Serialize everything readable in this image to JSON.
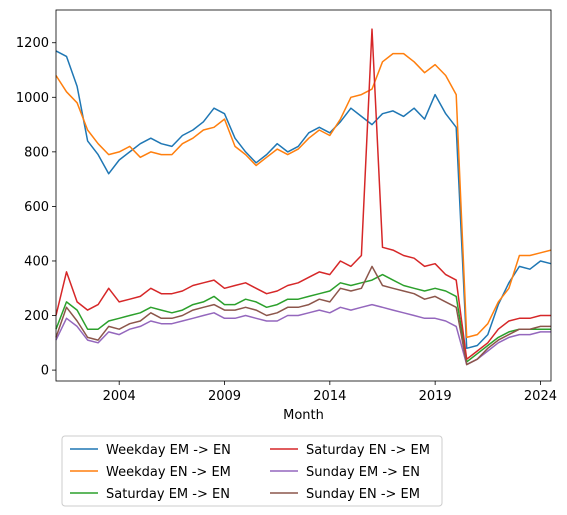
{
  "chart_data": {
    "type": "line",
    "title": "",
    "xlabel": "Month",
    "ylabel": "",
    "xlim": [
      2001.0,
      2024.5
    ],
    "ylim": [
      -40,
      1320
    ],
    "x_ticks": [
      2004,
      2009,
      2014,
      2019,
      2024
    ],
    "y_ticks": [
      0,
      200,
      400,
      600,
      800,
      1000,
      1200
    ],
    "grid": false,
    "legend_position": "below",
    "x": [
      2001.0,
      2001.5,
      2002.0,
      2002.5,
      2003.0,
      2003.5,
      2004.0,
      2004.5,
      2005.0,
      2005.5,
      2006.0,
      2006.5,
      2007.0,
      2007.5,
      2008.0,
      2008.5,
      2009.0,
      2009.5,
      2010.0,
      2010.5,
      2011.0,
      2011.5,
      2012.0,
      2012.5,
      2013.0,
      2013.5,
      2014.0,
      2014.5,
      2015.0,
      2015.5,
      2016.0,
      2016.5,
      2017.0,
      2017.5,
      2018.0,
      2018.5,
      2019.0,
      2019.5,
      2020.0,
      2020.5,
      2021.0,
      2021.5,
      2022.0,
      2022.5,
      2023.0,
      2023.5,
      2024.0,
      2024.5
    ],
    "series": [
      {
        "name": "Weekday EM -> EN",
        "color": "#1f77b4",
        "values": [
          1170,
          1150,
          1040,
          840,
          790,
          720,
          770,
          800,
          830,
          850,
          830,
          820,
          860,
          880,
          910,
          960,
          940,
          850,
          800,
          760,
          790,
          830,
          800,
          820,
          870,
          890,
          870,
          910,
          960,
          930,
          900,
          940,
          950,
          930,
          960,
          920,
          1010,
          940,
          890,
          80,
          90,
          130,
          240,
          320,
          380,
          370,
          400,
          390
        ]
      },
      {
        "name": "Weekday EN -> EM",
        "color": "#ff7f0e",
        "values": [
          1080,
          1020,
          980,
          880,
          830,
          790,
          800,
          820,
          780,
          800,
          790,
          790,
          830,
          850,
          880,
          890,
          920,
          820,
          790,
          750,
          780,
          810,
          790,
          810,
          850,
          880,
          860,
          920,
          1000,
          1010,
          1030,
          1130,
          1160,
          1160,
          1130,
          1090,
          1120,
          1080,
          1010,
          120,
          130,
          170,
          250,
          300,
          420,
          420,
          430,
          440
        ]
      },
      {
        "name": "Saturday EM -> EN",
        "color": "#2ca02c",
        "values": [
          150,
          250,
          220,
          150,
          150,
          180,
          190,
          200,
          210,
          230,
          220,
          210,
          220,
          240,
          250,
          270,
          240,
          240,
          260,
          250,
          230,
          240,
          260,
          260,
          270,
          280,
          290,
          320,
          310,
          320,
          330,
          350,
          330,
          310,
          300,
          290,
          300,
          290,
          270,
          30,
          60,
          90,
          120,
          140,
          150,
          150,
          150,
          150
        ]
      },
      {
        "name": "Saturday EN -> EM",
        "color": "#d62728",
        "values": [
          200,
          360,
          250,
          220,
          240,
          300,
          250,
          260,
          270,
          300,
          280,
          280,
          290,
          310,
          320,
          330,
          300,
          310,
          320,
          300,
          280,
          290,
          310,
          320,
          340,
          360,
          350,
          400,
          380,
          420,
          1250,
          450,
          440,
          420,
          410,
          380,
          390,
          350,
          330,
          40,
          70,
          100,
          150,
          180,
          190,
          190,
          200,
          200
        ]
      },
      {
        "name": "Sunday EM -> EN",
        "color": "#9467bd",
        "values": [
          110,
          190,
          160,
          110,
          100,
          140,
          130,
          150,
          160,
          180,
          170,
          170,
          180,
          190,
          200,
          210,
          190,
          190,
          200,
          190,
          180,
          180,
          200,
          200,
          210,
          220,
          210,
          230,
          220,
          230,
          240,
          230,
          220,
          210,
          200,
          190,
          190,
          180,
          160,
          20,
          40,
          70,
          100,
          120,
          130,
          130,
          140,
          140
        ]
      },
      {
        "name": "Sunday EN -> EM",
        "color": "#8c564b",
        "values": [
          120,
          230,
          180,
          120,
          110,
          160,
          150,
          170,
          180,
          210,
          190,
          190,
          200,
          220,
          230,
          240,
          220,
          220,
          230,
          220,
          200,
          210,
          230,
          230,
          240,
          260,
          250,
          300,
          290,
          300,
          380,
          310,
          300,
          290,
          280,
          260,
          270,
          250,
          230,
          20,
          40,
          80,
          110,
          130,
          150,
          150,
          160,
          160
        ]
      }
    ]
  }
}
